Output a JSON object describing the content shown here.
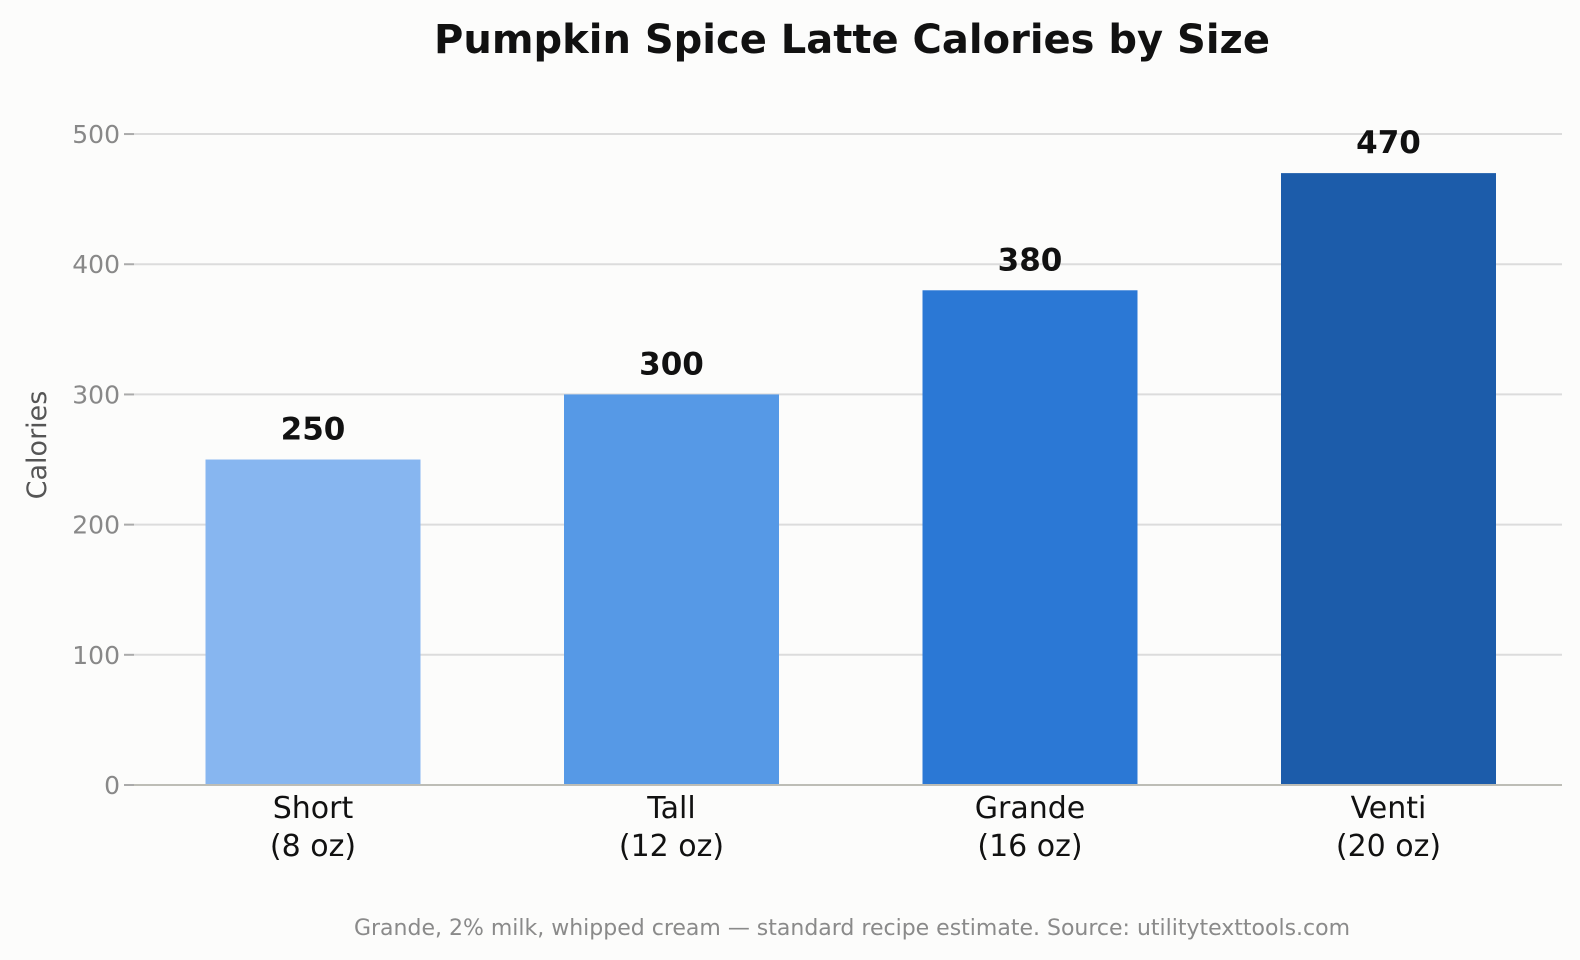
{
  "chart_data": {
    "type": "bar",
    "title": "Pumpkin Spice Latte Calories by Size",
    "ylabel": "Calories",
    "xlabel": "",
    "categories": [
      [
        "Short",
        "(8 oz)"
      ],
      [
        "Tall",
        "(12 oz)"
      ],
      [
        "Grande",
        "(16 oz)"
      ],
      [
        "Venti",
        "(20 oz)"
      ]
    ],
    "values": [
      250,
      300,
      380,
      470
    ],
    "value_labels": [
      "250",
      "300",
      "380",
      "470"
    ],
    "bar_colors": [
      "#87b6f0",
      "#5699e6",
      "#2b78d5",
      "#1c5caa"
    ],
    "ylim": [
      0,
      530
    ],
    "yticks": [
      0,
      100,
      200,
      300,
      400,
      500
    ],
    "grid": true,
    "legend": "none",
    "footnote": "Grande, 2% milk, whipped cream — standard recipe estimate. Source: utilitytexttools.com"
  }
}
